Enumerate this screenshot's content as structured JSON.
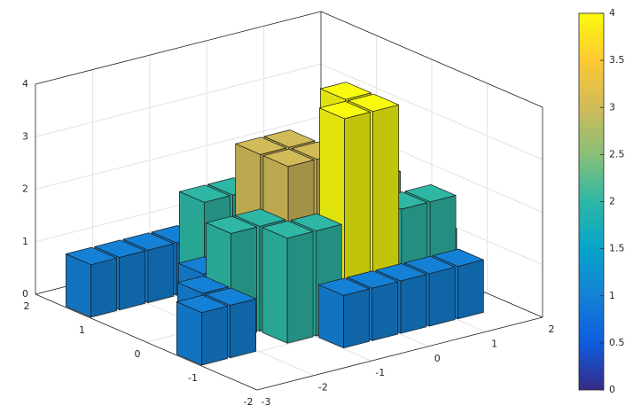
{
  "chart_data": {
    "type": "bar3d",
    "x": [
      -2.75,
      -2.25,
      -1.75,
      -1.25,
      -2.75,
      -2.25,
      -2.25,
      -1.75,
      -1.75,
      -1.25,
      -1.25,
      -0.75,
      -1.25,
      -0.75,
      -0.75,
      -0.75,
      -0.25,
      -0.25,
      -0.25,
      0.25,
      0.25,
      0.25,
      0.75,
      0.75,
      1.25,
      1.25,
      -0.75,
      -0.25,
      0.25,
      0.75,
      1.25,
      1.75,
      1.75,
      1.25
    ],
    "y": [
      1.25,
      1.25,
      1.25,
      1.25,
      -0.75,
      -0.75,
      -0.25,
      0.25,
      -0.25,
      -0.25,
      0.75,
      0.75,
      -0.75,
      -0.75,
      0.25,
      -0.25,
      0.25,
      -0.25,
      -0.75,
      -0.75,
      -0.25,
      0.75,
      0.25,
      -0.75,
      0.25,
      -0.75,
      -1.25,
      -1.25,
      -1.25,
      -1.25,
      -1.25,
      -0.25,
      0.25,
      0.75
    ],
    "values": [
      1,
      1,
      1,
      1,
      1,
      1,
      1,
      1,
      2,
      2,
      2,
      2,
      2,
      2,
      3,
      3,
      3,
      3,
      4,
      4,
      4,
      2,
      3,
      2,
      2,
      2,
      1,
      1,
      1,
      1,
      1,
      1,
      1,
      1
    ],
    "xlim": [
      -3,
      2
    ],
    "xticks": [
      -3,
      -2,
      -1,
      0,
      1,
      2
    ],
    "ylim": [
      -2,
      2
    ],
    "yticks": [
      -2,
      -1,
      0,
      1,
      2
    ],
    "zlim": [
      0,
      4
    ],
    "zticks": [
      0,
      1,
      2,
      3,
      4
    ],
    "grid": true,
    "colormap": [
      "#352a87",
      "#0f5cdd",
      "#1481d6",
      "#06a4ca",
      "#2eb7a4",
      "#87bf77",
      "#d1bb59",
      "#fec832",
      "#f9fb0e"
    ],
    "colorbar": {
      "lim": [
        0,
        4
      ],
      "ticks": [
        0,
        0.5,
        1,
        1.5,
        2,
        2.5,
        3,
        3.5,
        4
      ]
    }
  }
}
